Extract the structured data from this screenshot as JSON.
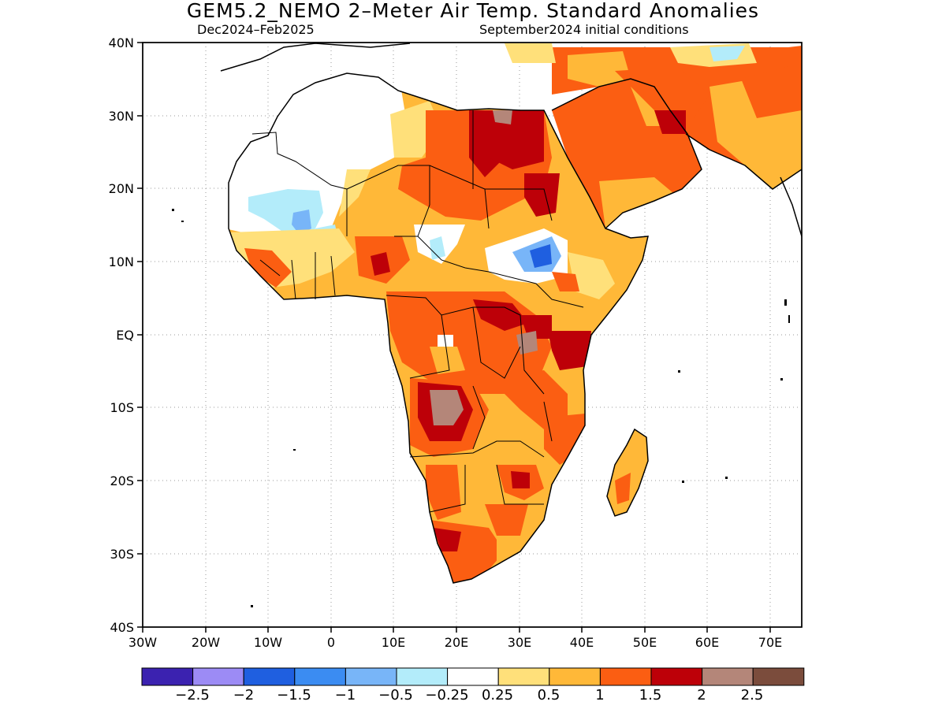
{
  "header": {
    "title": "GEM5.2_NEMO 2–Meter Air Temp. Standard Anomalies",
    "period": "Dec2024–Feb2025",
    "init": "September2024 initial conditions"
  },
  "axes": {
    "lat_labels": [
      "40N",
      "30N",
      "20N",
      "10N",
      "EQ",
      "10S",
      "20S",
      "30S",
      "40S"
    ],
    "lon_labels": [
      "30W",
      "20W",
      "10W",
      "0",
      "10E",
      "20E",
      "30E",
      "40E",
      "50E",
      "60E",
      "70E"
    ],
    "lat_range": [
      -40,
      40
    ],
    "lon_range": [
      -30,
      75
    ]
  },
  "legend": {
    "colors": [
      "#3b22b0",
      "#9c8bf5",
      "#1f5fe0",
      "#3b8cf2",
      "#78b5f8",
      "#b3ecfa",
      "#ffffff",
      "#ffe07a",
      "#ffb838",
      "#fb5e12",
      "#bd0008",
      "#b48679",
      "#7b4c3c"
    ],
    "labels": [
      "−2.5",
      "−2",
      "−1.5",
      "−1",
      "−0.5",
      "−0.25",
      "0.25",
      "0.5",
      "1",
      "1.5",
      "2",
      "2.5"
    ]
  },
  "fills": {
    "land": "#ffb838",
    "orange": "#fb5e12",
    "red": "#bd0008",
    "brown": "#b48679",
    "yellow": "#ffe07a",
    "white": "#ffffff",
    "lightblue": "#b3ecfa",
    "blue": "#3b8cf2",
    "darkblue": "#1f5fe0"
  }
}
